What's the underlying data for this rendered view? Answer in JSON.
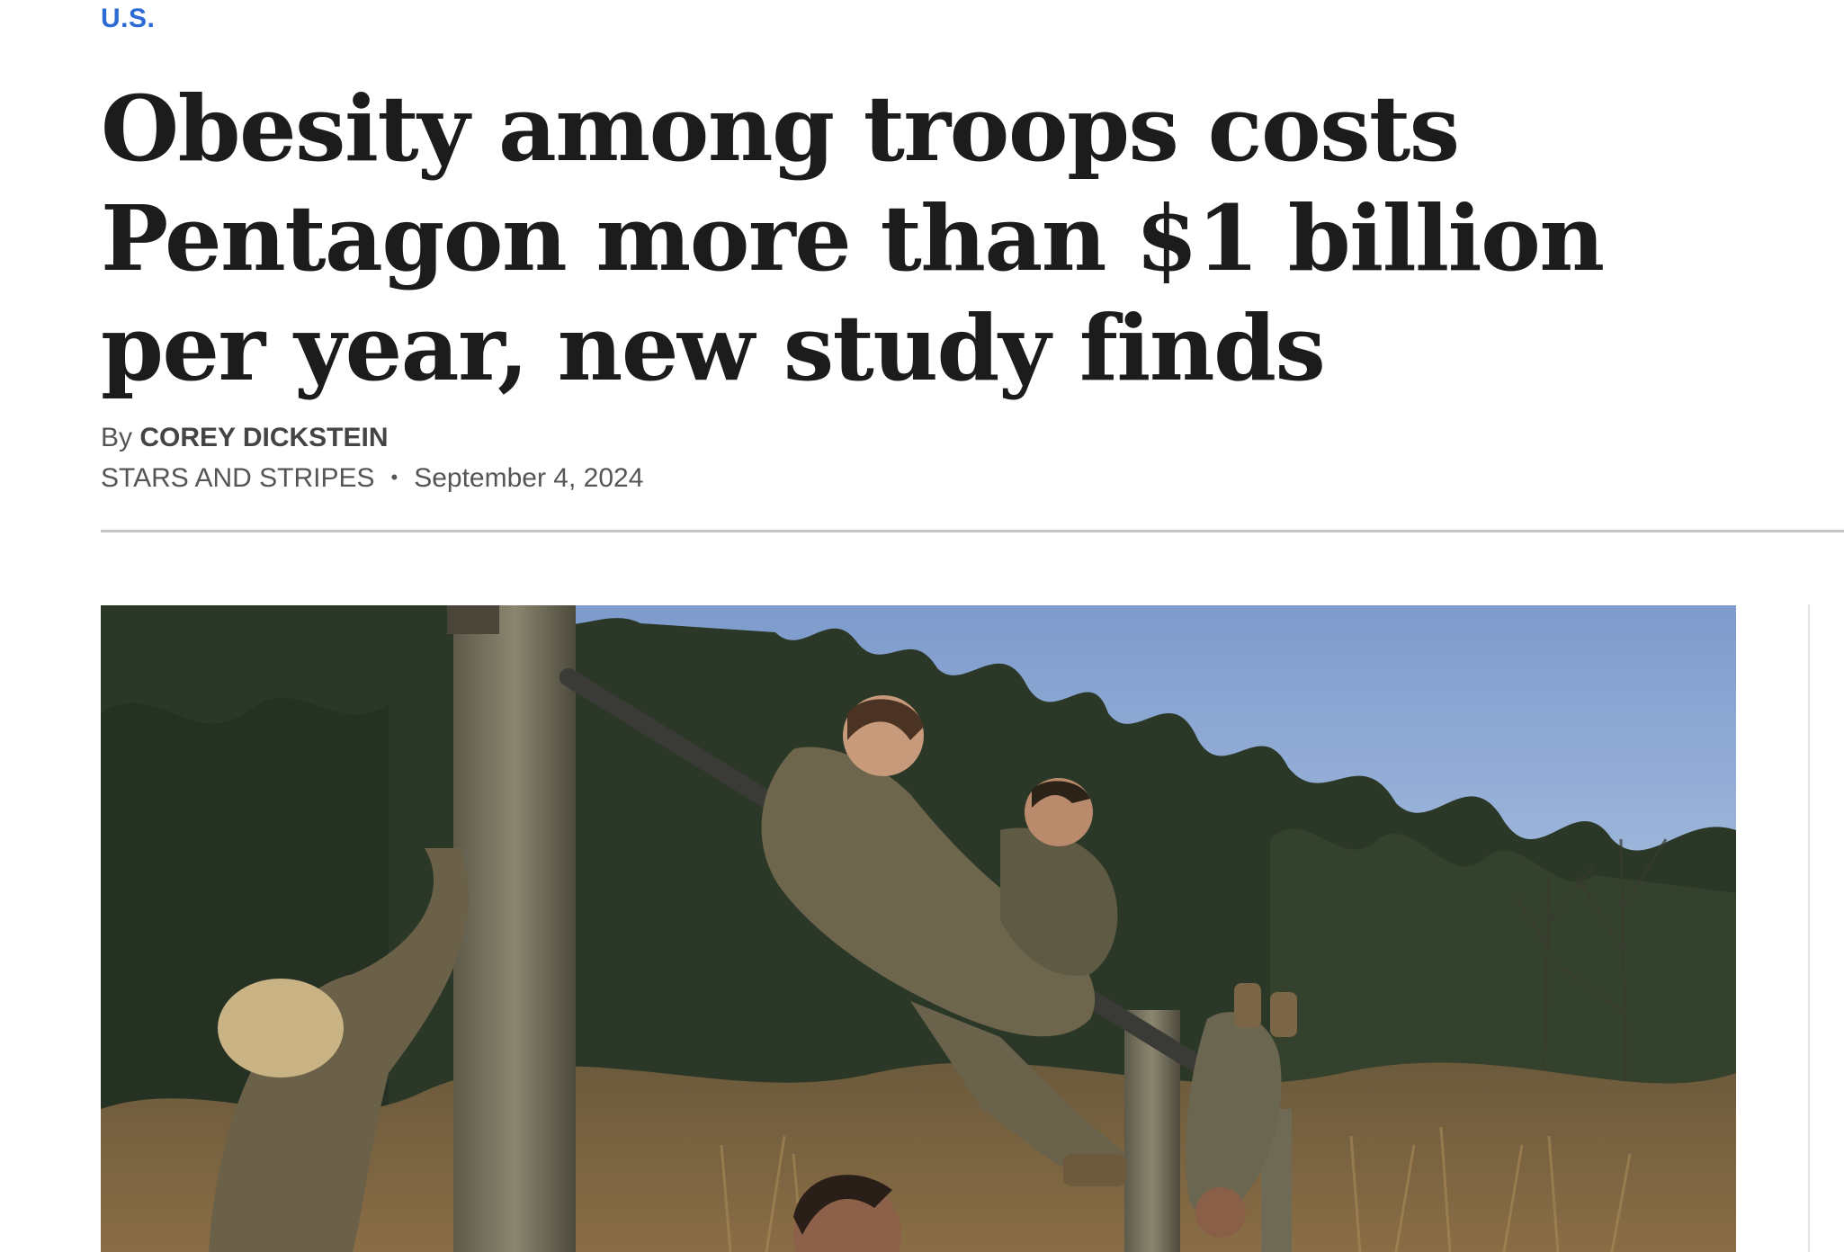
{
  "section": {
    "label": "U.S."
  },
  "article": {
    "headline": "Obesity among troops costs Pentagon more than $1 billion per year, new study finds",
    "byline_prefix": "By",
    "author": "COREY DICKSTEIN",
    "source": "STARS AND STRIPES",
    "separator": "•",
    "date": "September 4, 2024"
  },
  "photo": {
    "subject": "service members running an obstacle course on horizontal bars",
    "icon": "photo-image"
  },
  "colors": {
    "section_link": "#2c6ad6",
    "headline": "#1c1c1c",
    "meta_text": "#555555",
    "divider": "#c4c4c4"
  }
}
